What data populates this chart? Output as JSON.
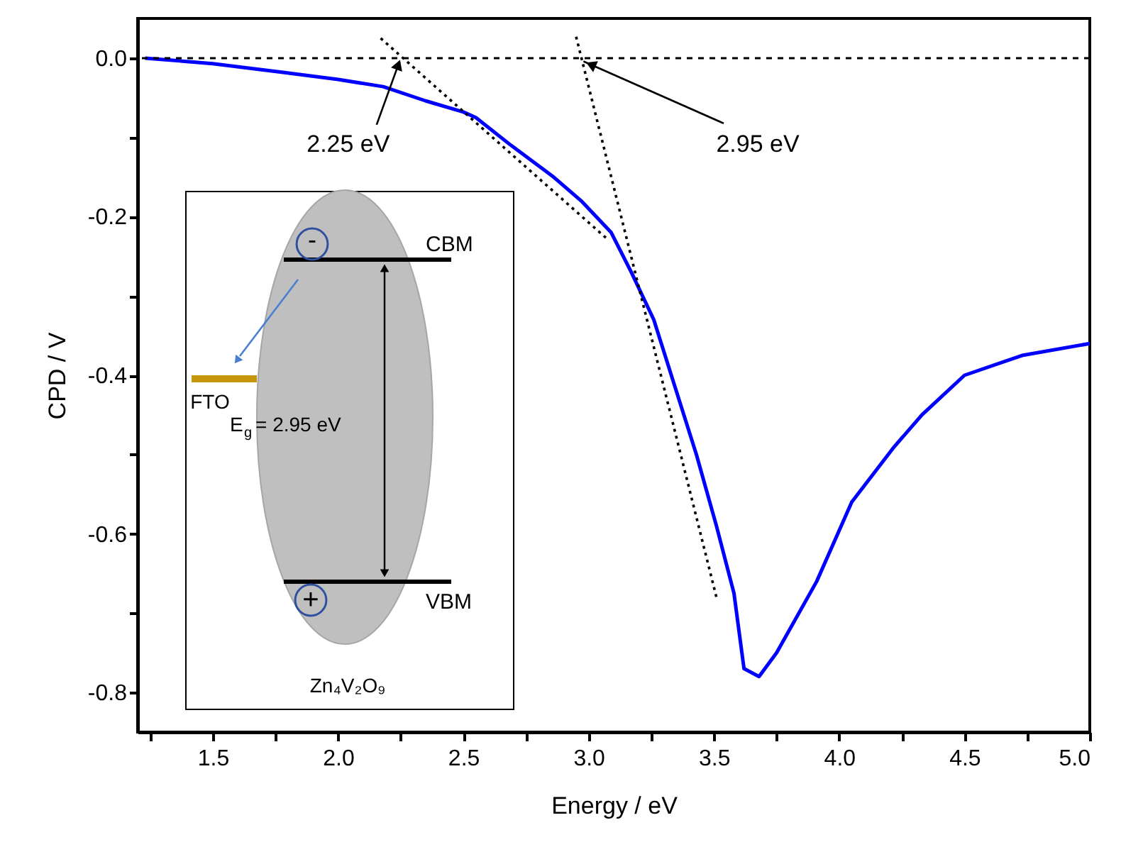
{
  "chart_data": {
    "type": "line",
    "xlabel": "Energy / eV",
    "ylabel": "CPD / V",
    "series": [
      {
        "color": "#0000ff",
        "line_style": "solid",
        "x": [
          1.23,
          1.5,
          1.78,
          2.0,
          2.18,
          2.35,
          2.5,
          2.55,
          2.69,
          2.86,
          2.97,
          3.09,
          3.17,
          3.26,
          3.34,
          3.43,
          3.51,
          3.58,
          3.62,
          3.68,
          3.75,
          3.91,
          4.05,
          4.22,
          4.33,
          4.5,
          4.73,
          5.0
        ],
        "values": [
          0.0,
          -0.007,
          -0.018,
          -0.027,
          -0.036,
          -0.054,
          -0.068,
          -0.075,
          -0.11,
          -0.15,
          -0.18,
          -0.22,
          -0.27,
          -0.33,
          -0.41,
          -0.5,
          -0.59,
          -0.675,
          -0.77,
          -0.78,
          -0.75,
          -0.66,
          -0.56,
          -0.49,
          -0.45,
          -0.4,
          -0.375,
          -0.36
        ]
      },
      {
        "color": "#000000",
        "line_style": "dotted",
        "x": [
          2.17,
          3.07
        ],
        "values": [
          0.025,
          -0.227
        ]
      },
      {
        "color": "#000000",
        "line_style": "dotted",
        "x": [
          2.95,
          3.51
        ],
        "values": [
          0.027,
          -0.68
        ]
      }
    ],
    "ref_lines": [
      {
        "axis": "y",
        "value": 0,
        "label": null,
        "color": "#000000",
        "line_style": "dashed"
      }
    ],
    "annotations": [
      {
        "text": "2.25 eV",
        "x": 2.25,
        "y": 0
      },
      {
        "text": "2.95 eV",
        "x": 2.95,
        "y": 0
      },
      "CBM",
      "VBM",
      "FTO",
      "E$_{g}$ = 2.95 eV",
      "Zn₄V₂O₉",
      "-",
      "+"
    ],
    "xlim": [
      1.2,
      5.0
    ],
    "ylim": [
      -0.85,
      0.05
    ],
    "xticks": [
      {
        "value": 1.25,
        "label": null
      },
      1.5,
      {
        "value": 1.75,
        "label": null
      },
      {
        "value": 2.0,
        "label": "2.0"
      },
      {
        "value": 2.25,
        "label": null
      },
      2.5,
      {
        "value": 2.75,
        "label": null
      },
      {
        "value": 3.0,
        "label": "3.0"
      },
      {
        "value": 3.25,
        "label": null
      },
      3.5,
      {
        "value": 3.75,
        "label": null
      },
      {
        "value": 4.0,
        "label": "4.0"
      },
      {
        "value": 4.25,
        "label": null
      },
      4.5,
      {
        "value": 4.75,
        "label": null
      },
      {
        "value": 5.0,
        "label": "5.0"
      }
    ],
    "yticks": [
      {
        "value": 0,
        "label": "0.0"
      },
      {
        "value": -0.1,
        "label": null
      },
      -0.2,
      {
        "value": -0.3,
        "label": null
      },
      -0.4,
      {
        "value": -0.5,
        "label": null
      },
      -0.6,
      {
        "value": -0.7,
        "label": null
      },
      -0.8
    ],
    "grid": false,
    "marker": "none"
  }
}
